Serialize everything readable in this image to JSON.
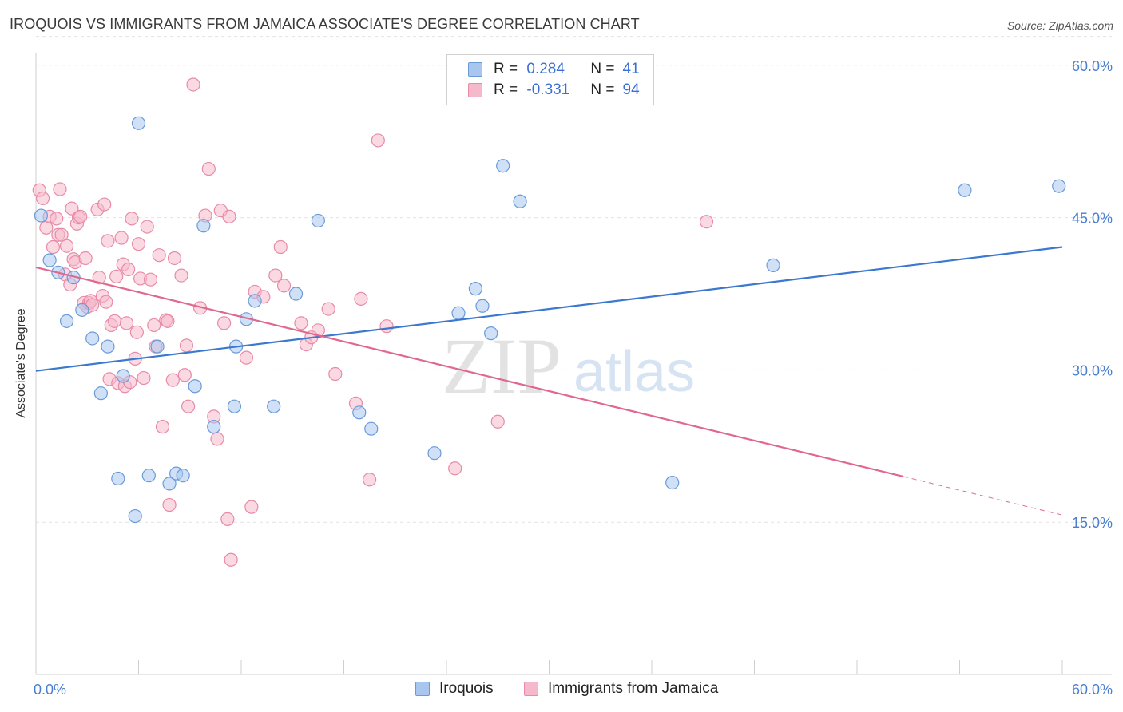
{
  "header": {
    "title": "IROQUOIS VS IMMIGRANTS FROM JAMAICA ASSOCIATE'S DEGREE CORRELATION CHART",
    "source": "Source: ZipAtlas.com"
  },
  "legend": {
    "iroquois": {
      "r_label": "R =",
      "r_value": "0.284",
      "n_label": "N =",
      "n_value": "41"
    },
    "jamaica": {
      "r_label": "R =",
      "r_value": "-0.331",
      "n_label": "N =",
      "n_value": "94"
    }
  },
  "bottom_legend": {
    "iroquois": "Iroquois",
    "jamaica": "Immigrants from Jamaica"
  },
  "watermark": {
    "zip": "ZIP",
    "atlas": "atlas"
  },
  "colors": {
    "blue_fill": "#a9c7ee",
    "blue_stroke": "#6a9bd8",
    "blue_line": "#3b78d0",
    "pink_fill": "#f6b9cb",
    "pink_stroke": "#e88aa8",
    "pink_line": "#e0688f",
    "tick_label": "#4a7fd0"
  },
  "chart_data": {
    "type": "scatter",
    "title": "IROQUOIS VS IMMIGRANTS FROM JAMAICA ASSOCIATE'S DEGREE CORRELATION CHART",
    "xlabel": "",
    "ylabel": "Associate's Degree",
    "xlim": [
      0,
      60
    ],
    "ylim": [
      0,
      63
    ],
    "x_tick_labels": [
      "0.0%",
      "60.0%"
    ],
    "y_ticks": [
      15,
      30,
      45,
      60
    ],
    "y_tick_labels": [
      "15.0%",
      "30.0%",
      "45.0%",
      "60.0%"
    ],
    "series": [
      {
        "name": "Iroquois",
        "points": [
          [
            0.3,
            45.2
          ],
          [
            0.8,
            40.8
          ],
          [
            1.3,
            39.6
          ],
          [
            1.8,
            34.8
          ],
          [
            2.2,
            39.1
          ],
          [
            2.7,
            35.9
          ],
          [
            3.3,
            33.1
          ],
          [
            3.8,
            27.7
          ],
          [
            4.2,
            32.3
          ],
          [
            4.8,
            19.3
          ],
          [
            5.1,
            29.4
          ],
          [
            5.8,
            15.6
          ],
          [
            6.0,
            54.3
          ],
          [
            6.6,
            19.6
          ],
          [
            7.1,
            32.3
          ],
          [
            7.8,
            18.8
          ],
          [
            8.2,
            19.8
          ],
          [
            8.6,
            19.6
          ],
          [
            9.3,
            28.4
          ],
          [
            9.8,
            44.2
          ],
          [
            10.4,
            24.4
          ],
          [
            11.6,
            26.4
          ],
          [
            11.7,
            32.3
          ],
          [
            12.3,
            35.0
          ],
          [
            12.8,
            36.8
          ],
          [
            13.9,
            26.4
          ],
          [
            15.2,
            37.5
          ],
          [
            16.5,
            44.7
          ],
          [
            18.9,
            25.8
          ],
          [
            19.6,
            24.2
          ],
          [
            23.3,
            21.8
          ],
          [
            24.7,
            35.6
          ],
          [
            25.7,
            38.0
          ],
          [
            26.1,
            36.3
          ],
          [
            26.6,
            33.6
          ],
          [
            27.3,
            50.1
          ],
          [
            28.3,
            46.6
          ],
          [
            37.2,
            18.9
          ],
          [
            43.1,
            40.3
          ],
          [
            54.3,
            47.7
          ],
          [
            59.8,
            48.1
          ]
        ]
      },
      {
        "name": "Immigrants from Jamaica",
        "points": [
          [
            0.2,
            47.7
          ],
          [
            0.4,
            46.9
          ],
          [
            0.6,
            44.0
          ],
          [
            0.8,
            45.1
          ],
          [
            1.0,
            42.1
          ],
          [
            1.2,
            44.9
          ],
          [
            1.3,
            43.3
          ],
          [
            1.4,
            47.8
          ],
          [
            1.5,
            43.3
          ],
          [
            1.7,
            39.4
          ],
          [
            1.8,
            42.2
          ],
          [
            2.0,
            38.4
          ],
          [
            2.1,
            45.9
          ],
          [
            2.2,
            40.9
          ],
          [
            2.3,
            40.6
          ],
          [
            2.4,
            44.4
          ],
          [
            2.5,
            45.0
          ],
          [
            2.6,
            45.1
          ],
          [
            2.8,
            36.6
          ],
          [
            2.9,
            41.0
          ],
          [
            3.0,
            36.2
          ],
          [
            3.1,
            36.6
          ],
          [
            3.2,
            36.8
          ],
          [
            3.3,
            36.4
          ],
          [
            3.6,
            45.8
          ],
          [
            3.7,
            39.1
          ],
          [
            3.9,
            37.3
          ],
          [
            4.0,
            46.3
          ],
          [
            4.1,
            36.7
          ],
          [
            4.2,
            42.7
          ],
          [
            4.3,
            29.1
          ],
          [
            4.4,
            34.4
          ],
          [
            4.6,
            34.8
          ],
          [
            4.7,
            39.2
          ],
          [
            4.8,
            28.7
          ],
          [
            5.0,
            43.0
          ],
          [
            5.1,
            40.4
          ],
          [
            5.2,
            28.4
          ],
          [
            5.3,
            34.6
          ],
          [
            5.4,
            39.9
          ],
          [
            5.5,
            28.8
          ],
          [
            5.6,
            44.9
          ],
          [
            5.8,
            31.1
          ],
          [
            5.9,
            33.7
          ],
          [
            6.0,
            42.4
          ],
          [
            6.1,
            39.0
          ],
          [
            6.3,
            29.2
          ],
          [
            6.5,
            44.1
          ],
          [
            6.7,
            38.9
          ],
          [
            6.9,
            34.4
          ],
          [
            7.0,
            32.3
          ],
          [
            7.2,
            41.3
          ],
          [
            7.4,
            24.4
          ],
          [
            7.6,
            34.9
          ],
          [
            7.7,
            34.8
          ],
          [
            7.8,
            16.7
          ],
          [
            8.0,
            29.0
          ],
          [
            8.1,
            41.0
          ],
          [
            8.5,
            39.3
          ],
          [
            8.7,
            29.5
          ],
          [
            8.8,
            32.4
          ],
          [
            8.9,
            26.4
          ],
          [
            9.2,
            58.1
          ],
          [
            9.6,
            36.1
          ],
          [
            9.9,
            45.2
          ],
          [
            10.1,
            49.8
          ],
          [
            10.4,
            25.4
          ],
          [
            10.6,
            23.2
          ],
          [
            10.8,
            45.7
          ],
          [
            11.0,
            34.6
          ],
          [
            11.3,
            45.1
          ],
          [
            11.4,
            11.3
          ],
          [
            11.2,
            15.3
          ],
          [
            12.3,
            31.2
          ],
          [
            12.6,
            16.5
          ],
          [
            12.8,
            37.7
          ],
          [
            13.3,
            37.2
          ],
          [
            14.0,
            39.3
          ],
          [
            14.3,
            42.1
          ],
          [
            14.5,
            38.3
          ],
          [
            15.5,
            34.6
          ],
          [
            15.8,
            32.5
          ],
          [
            16.5,
            33.9
          ],
          [
            17.1,
            36.0
          ],
          [
            17.5,
            29.6
          ],
          [
            18.7,
            26.7
          ],
          [
            19.0,
            37.0
          ],
          [
            19.5,
            19.2
          ],
          [
            20.0,
            52.6
          ],
          [
            20.5,
            34.3
          ],
          [
            24.5,
            20.3
          ],
          [
            27.0,
            24.9
          ],
          [
            39.2,
            44.6
          ],
          [
            16.1,
            33.2
          ]
        ]
      }
    ],
    "trend_lines": [
      {
        "series": "Iroquois",
        "x_start": 0,
        "y_start": 29.9,
        "x_end": 60,
        "y_end": 42.1,
        "style": "solid"
      },
      {
        "series": "Immigrants from Jamaica",
        "x_start": 0,
        "y_start": 40.1,
        "x_end": 50.7,
        "y_end": 19.5,
        "style": "solid"
      },
      {
        "series": "Immigrants from Jamaica",
        "x_start": 50.7,
        "y_start": 19.5,
        "x_end": 60,
        "y_end": 15.7,
        "style": "dashed"
      }
    ],
    "grid": true,
    "legend_position": "top-center"
  }
}
